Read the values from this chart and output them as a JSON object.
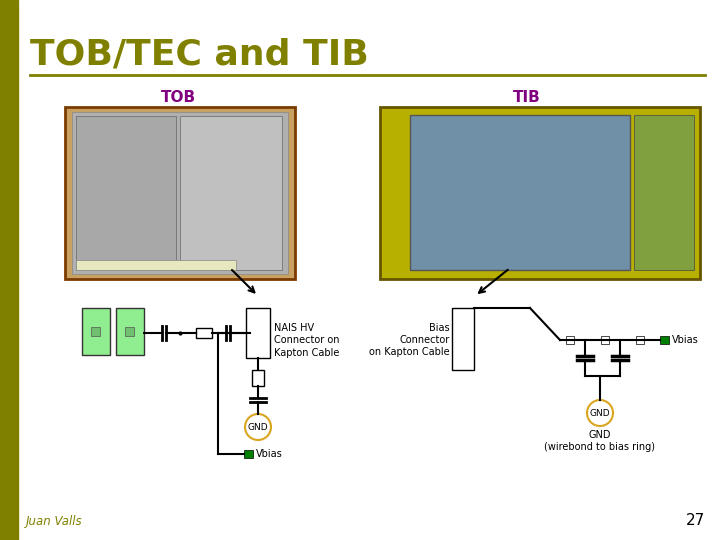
{
  "title": "TOB/TEC and TIB",
  "title_color": "#808000",
  "title_fontsize": 26,
  "bg_color": "#ffffff",
  "slide_number": "27",
  "author": "Juan Valls",
  "tob_label": "TOB",
  "tib_label": "TIB",
  "label_color": "#800080",
  "label_fontsize": 11,
  "annotation_fontsize": 7,
  "nais_text": "NAIS HV\nConnector on\nKapton Cable",
  "gnd_text": "GND",
  "vbias_text": "Vbias",
  "bias_connector_text": "Bias\nConnector\non Kapton Cable",
  "gnd2_text": "GND\n(wirebond to bias ring)",
  "left_stripe_color": "#808000",
  "gnd_circle_color": "#DAA520",
  "sensor_fill": "#90EE90",
  "vbias_fill": "#008000"
}
